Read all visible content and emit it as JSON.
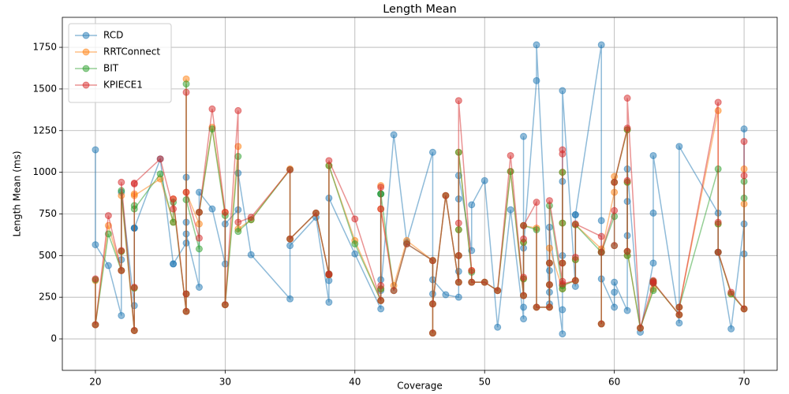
{
  "chart_data": {
    "type": "line",
    "title": "Length Mean",
    "x_label": "Coverage",
    "y_label": "Length Mean (ms)",
    "x": [
      20,
      20,
      21,
      22,
      22,
      22,
      23,
      23,
      23,
      23,
      25,
      26,
      26,
      27,
      27,
      27,
      27,
      28,
      28,
      29,
      30,
      30,
      31,
      31,
      32,
      35,
      35,
      37,
      38,
      38,
      38,
      40,
      42,
      42,
      42,
      42,
      43,
      44,
      46,
      46,
      46,
      47,
      48,
      48,
      48,
      48,
      49,
      49,
      50,
      51,
      52,
      53,
      53,
      53,
      53,
      54,
      54,
      55,
      55,
      55,
      55,
      56,
      56,
      56,
      56,
      56,
      57,
      57,
      57,
      59,
      59,
      59,
      60,
      60,
      60,
      61,
      61,
      61,
      61,
      62,
      63,
      63,
      63,
      65,
      65,
      68,
      68,
      68,
      69,
      70,
      70,
      70
    ],
    "series": [
      {
        "name": "RCD",
        "color": "#1f77b4",
        "values": [
          1135,
          565,
          440,
          140,
          475,
          880,
          200,
          665,
          665,
          665,
          1080,
          450,
          450,
          575,
          970,
          700,
          630,
          310,
          880,
          780,
          450,
          690,
          775,
          995,
          505,
          240,
          560,
          730,
          220,
          350,
          845,
          510,
          180,
          355,
          870,
          290,
          1225,
          580,
          1120,
          270,
          355,
          265,
          250,
          405,
          840,
          980,
          530,
          805,
          950,
          70,
          775,
          120,
          190,
          1215,
          545,
          1550,
          1765,
          210,
          280,
          410,
          670,
          30,
          175,
          500,
          945,
          1490,
          315,
          745,
          745,
          1765,
          710,
          360,
          190,
          280,
          340,
          170,
          620,
          825,
          1020,
          40,
          455,
          755,
          1100,
          95,
          1155,
          755,
          520,
          520,
          60,
          690,
          510,
          1260
        ]
      },
      {
        "name": "RRTConnect",
        "color": "#ff7f0e",
        "values": [
          350,
          85,
          680,
          410,
          525,
          860,
          50,
          305,
          870,
          860,
          960,
          700,
          840,
          165,
          270,
          1560,
          880,
          690,
          760,
          1270,
          760,
          205,
          1155,
          660,
          715,
          1020,
          600,
          755,
          385,
          385,
          1040,
          590,
          230,
          300,
          920,
          780,
          320,
          590,
          470,
          35,
          210,
          860,
          340,
          500,
          655,
          1120,
          410,
          340,
          340,
          290,
          1005,
          260,
          360,
          580,
          680,
          665,
          190,
          190,
          325,
          455,
          545,
          300,
          455,
          695,
          1000,
          320,
          350,
          475,
          685,
          540,
          90,
          520,
          880,
          975,
          940,
          1255,
          940,
          500,
          525,
          65,
          300,
          345,
          335,
          145,
          190,
          1370,
          690,
          520,
          270,
          180,
          1020,
          810
        ]
      },
      {
        "name": "BIT",
        "color": "#2ca02c",
        "values": [
          355,
          85,
          630,
          410,
          525,
          890,
          50,
          305,
          800,
          780,
          990,
          700,
          820,
          165,
          270,
          1530,
          835,
          540,
          760,
          1260,
          740,
          205,
          1095,
          645,
          715,
          1015,
          600,
          755,
          385,
          390,
          1040,
          570,
          230,
          300,
          870,
          870,
          290,
          570,
          470,
          35,
          210,
          860,
          340,
          500,
          655,
          1120,
          400,
          340,
          340,
          290,
          1005,
          260,
          360,
          580,
          680,
          655,
          190,
          190,
          325,
          455,
          800,
          300,
          455,
          695,
          1000,
          320,
          350,
          475,
          685,
          520,
          90,
          520,
          735,
          560,
          940,
          1255,
          940,
          500,
          525,
          65,
          290,
          345,
          335,
          145,
          190,
          1020,
          690,
          520,
          270,
          180,
          845,
          945
        ]
      },
      {
        "name": "KPIECE1",
        "color": "#d62728",
        "values": [
          360,
          85,
          740,
          410,
          530,
          940,
          50,
          310,
          930,
          935,
          1080,
          780,
          840,
          165,
          270,
          1480,
          880,
          605,
          760,
          1380,
          760,
          205,
          1370,
          700,
          730,
          1015,
          600,
          755,
          385,
          390,
          1070,
          720,
          230,
          320,
          910,
          780,
          290,
          570,
          470,
          35,
          210,
          860,
          340,
          500,
          695,
          1430,
          410,
          340,
          340,
          290,
          1100,
          260,
          370,
          600,
          680,
          820,
          190,
          190,
          325,
          455,
          830,
          345,
          455,
          1110,
          1135,
          330,
          350,
          490,
          690,
          615,
          90,
          520,
          770,
          560,
          940,
          1265,
          950,
          525,
          1445,
          65,
          335,
          350,
          340,
          145,
          190,
          1420,
          700,
          520,
          280,
          180,
          1185,
          980
        ]
      }
    ],
    "xlim": [
      17.45,
      72.55
    ],
    "xticks": [
      20,
      30,
      40,
      50,
      60,
      70
    ],
    "ylim": [
      -189,
      1930
    ],
    "yticks": [
      0,
      250,
      500,
      750,
      1000,
      1250,
      1500,
      1750
    ],
    "grid": true,
    "legend": "upper left"
  }
}
